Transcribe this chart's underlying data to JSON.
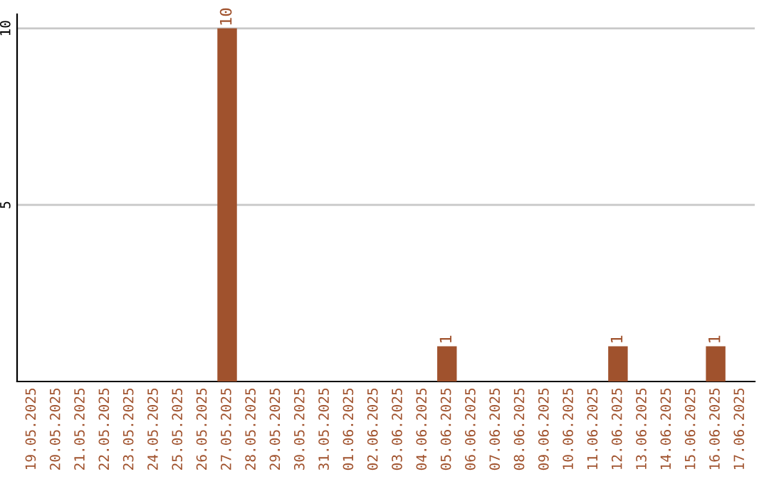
{
  "chart_data": {
    "type": "bar",
    "categories": [
      "19.05.2025",
      "20.05.2025",
      "21.05.2025",
      "22.05.2025",
      "23.05.2025",
      "24.05.2025",
      "25.05.2025",
      "26.05.2025",
      "27.05.2025",
      "28.05.2025",
      "29.05.2025",
      "30.05.2025",
      "31.05.2025",
      "01.06.2025",
      "02.06.2025",
      "03.06.2025",
      "04.06.2025",
      "05.06.2025",
      "06.06.2025",
      "07.06.2025",
      "08.06.2025",
      "09.06.2025",
      "10.06.2025",
      "11.06.2025",
      "12.06.2025",
      "13.06.2025",
      "14.06.2025",
      "15.06.2025",
      "16.06.2025",
      "17.06.2025"
    ],
    "values": [
      0,
      0,
      0,
      0,
      0,
      0,
      0,
      0,
      10,
      0,
      0,
      0,
      0,
      0,
      0,
      0,
      0,
      1,
      0,
      0,
      0,
      0,
      0,
      0,
      1,
      0,
      0,
      0,
      1,
      0
    ],
    "value_labels": [
      null,
      null,
      null,
      null,
      null,
      null,
      null,
      null,
      "10",
      null,
      null,
      null,
      null,
      null,
      null,
      null,
      null,
      "1",
      null,
      null,
      null,
      null,
      null,
      null,
      "1",
      null,
      null,
      null,
      "1",
      null
    ],
    "color": "#a0522d",
    "ylim": [
      0,
      10.4
    ],
    "yticks": [
      5,
      10
    ],
    "grid": "y"
  }
}
